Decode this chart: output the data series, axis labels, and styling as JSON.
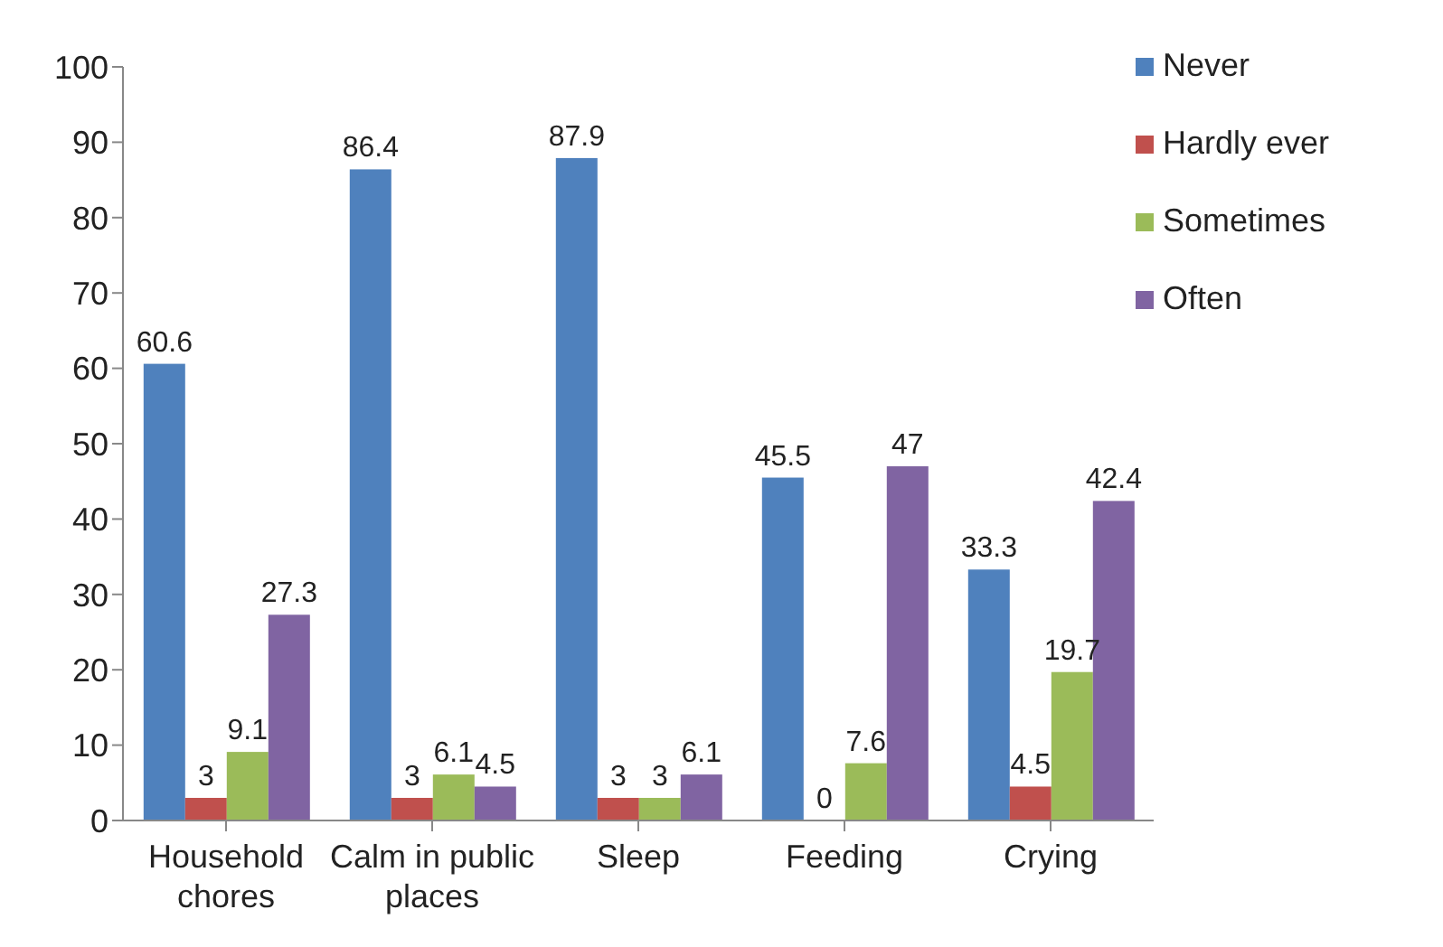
{
  "chart_data": {
    "type": "bar",
    "categories": [
      "Household chores",
      "Calm in public places",
      "Sleep",
      "Feeding",
      "Crying"
    ],
    "series": [
      {
        "name": "Never",
        "color": "#4f81bd",
        "values": [
          60.6,
          86.4,
          87.9,
          45.5,
          33.3
        ]
      },
      {
        "name": "Hardly ever",
        "color": "#c0504d",
        "values": [
          3,
          3,
          3,
          0,
          4.5
        ]
      },
      {
        "name": "Sometimes",
        "color": "#9bbb59",
        "values": [
          9.1,
          6.1,
          3,
          7.6,
          19.7
        ]
      },
      {
        "name": "Often",
        "color": "#8064a2",
        "values": [
          27.3,
          4.5,
          6.1,
          47,
          42.4
        ]
      }
    ],
    "ylim": [
      0,
      100
    ],
    "yticks": [
      0,
      10,
      20,
      30,
      40,
      50,
      60,
      70,
      80,
      90,
      100
    ],
    "grid": false,
    "legend": "top right",
    "data_labels": true
  }
}
